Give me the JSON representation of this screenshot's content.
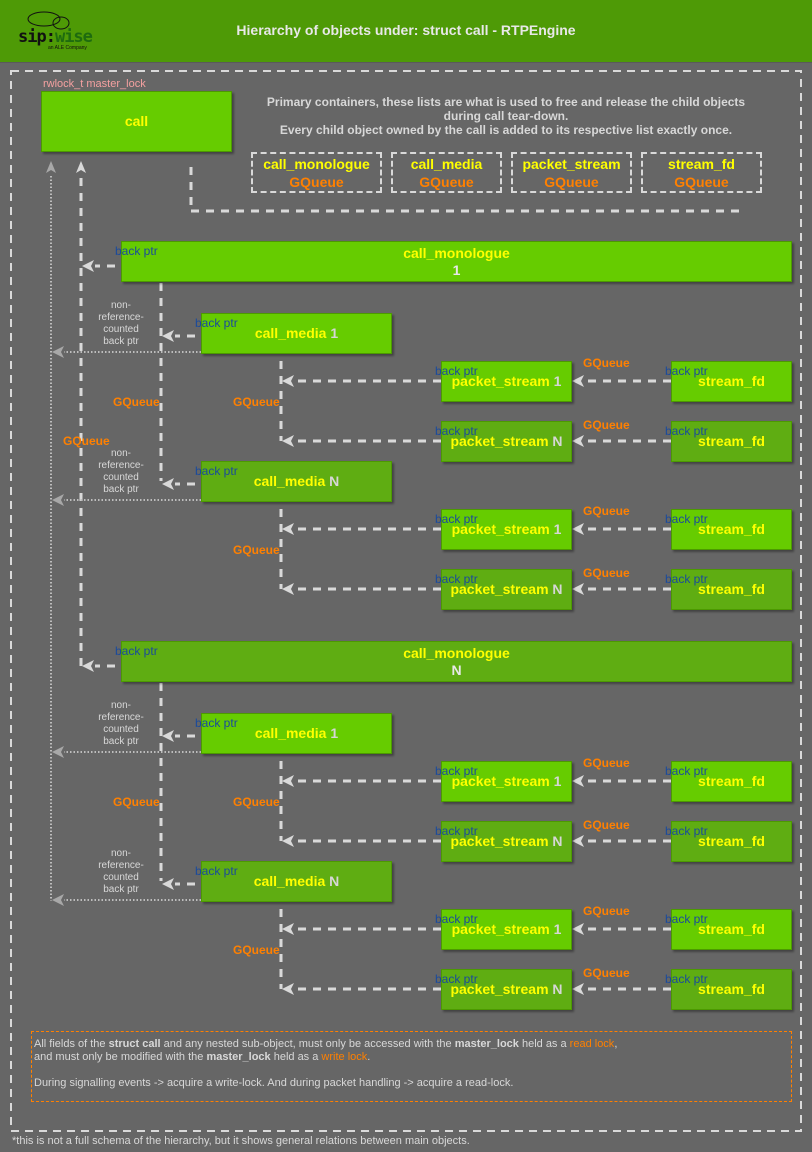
{
  "header": {
    "title": "Hierarchy of objects under: struct call - RTPEngine",
    "logo_text_left": "sip:",
    "logo_text_right": "wise",
    "logo_sub": "an ALE Company"
  },
  "call": {
    "name": "call",
    "lock_label": "rwlock_t master_lock"
  },
  "primary_text": {
    "line1": "Primary containers, these lists are what is used to free and release the child objects",
    "line2": "during call tear-down.",
    "line3": "Every child object owned by the call is added to its respective list exactly once."
  },
  "containers": [
    {
      "name": "call_monologue",
      "type": "GQueue"
    },
    {
      "name": "call_media",
      "type": "GQueue"
    },
    {
      "name": "packet_stream",
      "type": "GQueue"
    },
    {
      "name": "stream_fd",
      "type": "GQueue"
    }
  ],
  "labels": {
    "back_ptr": "back ptr",
    "gqueue": "GQueue",
    "non_ref": "non-\nreference-\ncounted\nback ptr"
  },
  "monologues": [
    {
      "name": "call_monologue",
      "index": "1",
      "medias": [
        {
          "name": "call_media",
          "index": "1",
          "streams": [
            {
              "name": "packet_stream",
              "index": "1",
              "fd": "stream_fd"
            },
            {
              "name": "packet_stream",
              "index": "N",
              "fd": "stream_fd"
            }
          ]
        },
        {
          "name": "call_media",
          "index": "N",
          "streams": [
            {
              "name": "packet_stream",
              "index": "1",
              "fd": "stream_fd"
            },
            {
              "name": "packet_stream",
              "index": "N",
              "fd": "stream_fd"
            }
          ]
        }
      ]
    },
    {
      "name": "call_monologue",
      "index": "N",
      "medias": [
        {
          "name": "call_media",
          "index": "1",
          "streams": [
            {
              "name": "packet_stream",
              "index": "1",
              "fd": "stream_fd"
            },
            {
              "name": "packet_stream",
              "index": "N",
              "fd": "stream_fd"
            }
          ]
        },
        {
          "name": "call_media",
          "index": "N",
          "streams": [
            {
              "name": "packet_stream",
              "index": "1",
              "fd": "stream_fd"
            },
            {
              "name": "packet_stream",
              "index": "N",
              "fd": "stream_fd"
            }
          ]
        }
      ]
    }
  ],
  "note": {
    "p1_a": "All fields of the ",
    "p1_b": "struct call",
    "p1_c": " and any nested sub-object, must only be accessed with the ",
    "p1_d": "master_lock",
    "p1_e": " held as a ",
    "p1_f": "read lock",
    "p1_g": ",",
    "p2_a": "and must only be modified with the ",
    "p2_b": "master_lock",
    "p2_c": " held as a ",
    "p2_d": "write lock",
    "p2_e": ".",
    "p3": "During signalling events -> acquire a write-lock. And during packet handling -> acquire a read-lock."
  },
  "footer": "*this is not a full schema of the hierarchy, but it shows general relations between main objects.",
  "colors": {
    "header": "#4e9a06",
    "background": "#666666",
    "box_bright": "#66cc00",
    "box_dark": "#5fad12",
    "name_text": "#ffff00",
    "gqueue_text": "#ff8000",
    "back_ptr_text": "#1a4a9c",
    "lock_label": "#f4a0a0",
    "lines": "#d9d9d9"
  }
}
